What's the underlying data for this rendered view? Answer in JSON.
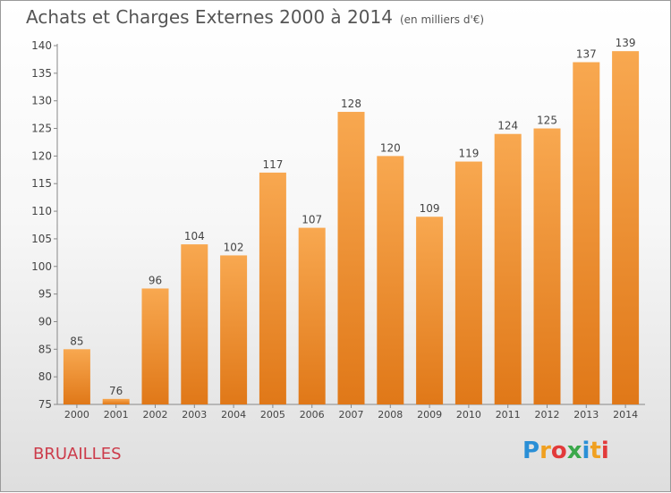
{
  "title": "Achats et Charges Externes 2000 à 2014",
  "subtitle": "(en milliers d'€)",
  "commune": "BRUAILLES",
  "logo": {
    "letters": [
      "P",
      "r",
      "o",
      "x",
      "i",
      "t",
      "i"
    ],
    "colors": [
      "#2a8fd6",
      "#f0a020",
      "#e23a3a",
      "#3aa84a",
      "#2a8fd6",
      "#f0a020",
      "#e23a3a"
    ]
  },
  "colors": {
    "bar_light": "#f8a850",
    "bar_dark": "#e07818",
    "commune_text": "#cc3b4a"
  },
  "chart_data": {
    "type": "bar",
    "categories": [
      "2000",
      "2001",
      "2002",
      "2003",
      "2004",
      "2005",
      "2006",
      "2007",
      "2008",
      "2009",
      "2010",
      "2011",
      "2012",
      "2013",
      "2014"
    ],
    "values": [
      85,
      76,
      96,
      104,
      102,
      117,
      107,
      128,
      120,
      109,
      119,
      124,
      125,
      137,
      139
    ],
    "ylim": [
      75,
      140
    ],
    "yticks": [
      75,
      80,
      85,
      90,
      95,
      100,
      105,
      110,
      115,
      120,
      125,
      130,
      135,
      140
    ],
    "grid": false
  }
}
